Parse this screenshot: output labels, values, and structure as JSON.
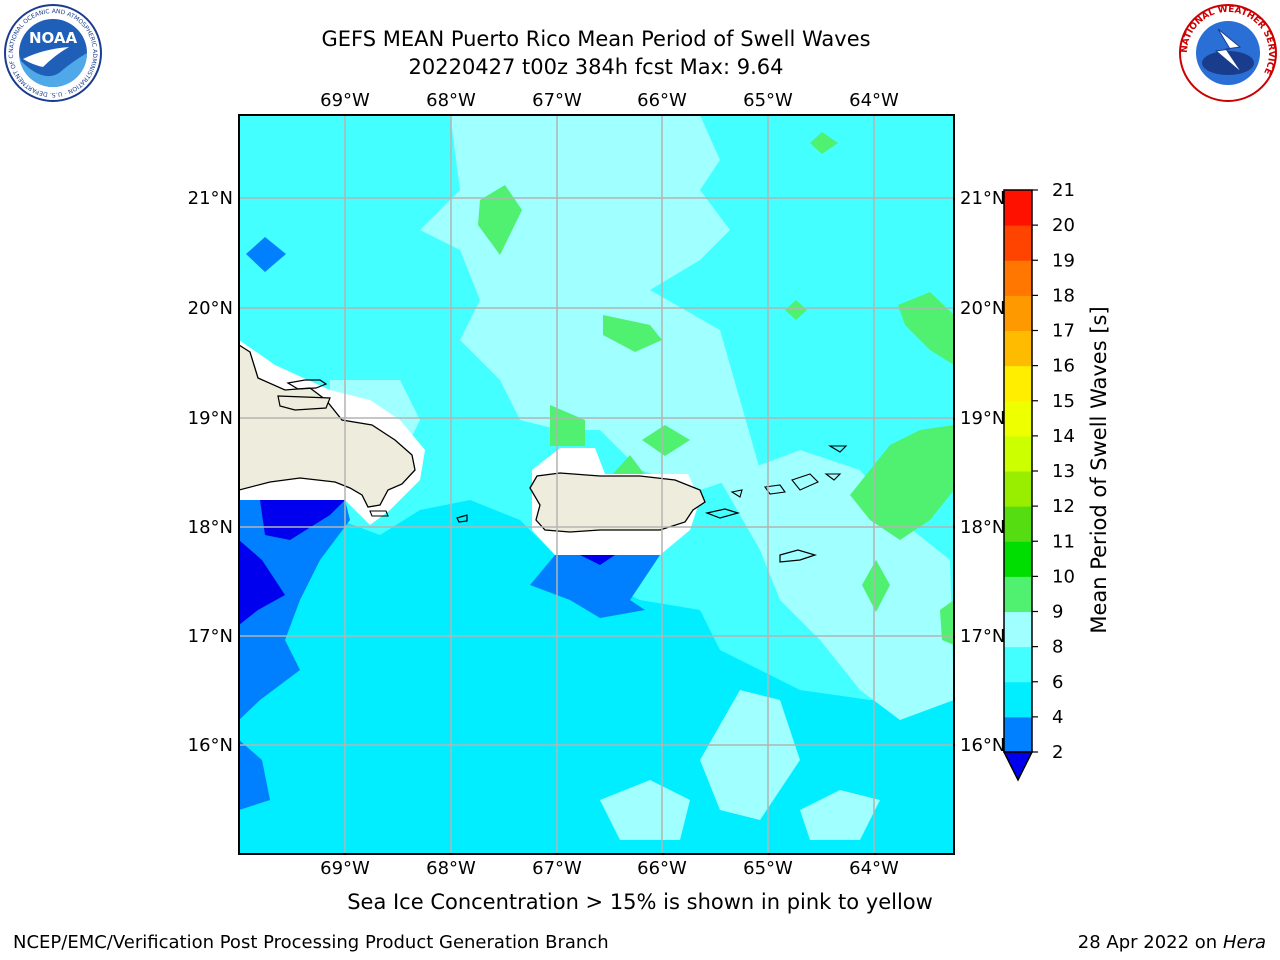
{
  "header": {
    "title_line1": "GEFS MEAN Puerto Rico Mean Period of Swell Waves",
    "title_line2": "20220427 t00z 384h fcst   Max: 9.64"
  },
  "map": {
    "lon_labels": [
      "69°W",
      "68°W",
      "67°W",
      "66°W",
      "65°W",
      "64°W"
    ],
    "lat_labels": [
      "21°N",
      "20°N",
      "19°N",
      "18°N",
      "17°N",
      "16°N"
    ],
    "land_color": "#eeecdc",
    "grid_color": "#b4b4b4"
  },
  "colorbar": {
    "label": "Mean Period of Swell Waves [s]",
    "ticks": [
      "2",
      "4",
      "6",
      "8",
      "9",
      "10",
      "11",
      "12",
      "13",
      "14",
      "15",
      "16",
      "17",
      "18",
      "19",
      "20",
      "21"
    ],
    "colors": [
      "#0000ee",
      "#0080ff",
      "#00eeff",
      "#44ffff",
      "#a0ffff",
      "#50f070",
      "#00dd00",
      "#55dd11",
      "#99ee00",
      "#ccff00",
      "#eeff00",
      "#ffee00",
      "#ffbb00",
      "#ff9900",
      "#ff7700",
      "#ff4400",
      "#ff1100",
      "#ff0000"
    ]
  },
  "note": "Sea Ice Concentration > 15% is shown in pink to yellow",
  "footer": {
    "left": "NCEP/EMC/Verification Post Processing Product Generation Branch",
    "right_date": "28 Apr 2022 on ",
    "right_machine": "Hera"
  },
  "logos": {
    "noaa": "NOAA",
    "noaa_ring": "NATIONAL OCEANIC AND ATMOSPHERIC ADMINISTRATION · U.S. DEPARTMENT OF COMMERCE",
    "nws_ring": "NATIONAL WEATHER SERVICE"
  }
}
